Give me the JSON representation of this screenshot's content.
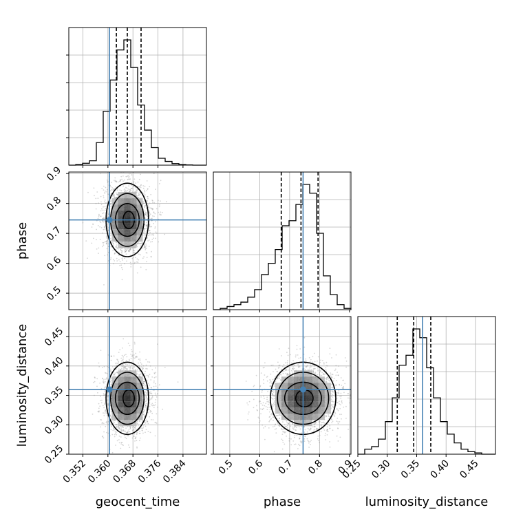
{
  "chart_data": {
    "type": "corner",
    "parameters": [
      "geocent_time",
      "phase",
      "luminosity_distance"
    ],
    "labels": {
      "geocent_time": "geocent_time",
      "phase": "phase",
      "luminosity_distance": "luminosity_distance"
    },
    "ranges": {
      "geocent_time": [
        0.3475,
        0.3915
      ],
      "phase": [
        0.445,
        0.905
      ],
      "luminosity_distance": [
        0.25,
        0.484
      ]
    },
    "ticks": {
      "geocent_time": [
        "0.352",
        "0.360",
        "0.368",
        "0.376",
        "0.384"
      ],
      "phase": [
        "0.5",
        "0.6",
        "0.7",
        "0.8",
        "0.9"
      ],
      "luminosity_distance": [
        "0.25",
        "0.30",
        "0.35",
        "0.40",
        "0.45"
      ]
    },
    "truths": {
      "geocent_time": 0.3605,
      "phase": 0.745,
      "luminosity_distance": 0.36
    },
    "quantiles": {
      "geocent_time": [
        0.3627,
        0.3662,
        0.3706
      ],
      "phase": [
        0.672,
        0.738,
        0.795
      ],
      "luminosity_distance": [
        0.317,
        0.345,
        0.374
      ]
    },
    "histograms": {
      "geocent_time": {
        "edges": [
          0.3475,
          0.3497,
          0.3519,
          0.3541,
          0.3563,
          0.3585,
          0.3607,
          0.3629,
          0.3651,
          0.3673,
          0.3695,
          0.3717,
          0.3739,
          0.3761,
          0.3783,
          0.3805,
          0.3827,
          0.3849,
          0.3871,
          0.3893,
          0.3915
        ],
        "counts": [
          0,
          0.005,
          0.015,
          0.035,
          0.18,
          0.43,
          0.68,
          0.92,
          1.0,
          0.78,
          0.48,
          0.28,
          0.14,
          0.055,
          0.03,
          0.012,
          0.005,
          0.002,
          0,
          0
        ]
      },
      "phase": {
        "edges": [
          0.445,
          0.468,
          0.491,
          0.514,
          0.537,
          0.56,
          0.583,
          0.606,
          0.629,
          0.652,
          0.675,
          0.698,
          0.721,
          0.744,
          0.767,
          0.79,
          0.813,
          0.836,
          0.859,
          0.882,
          0.905
        ],
        "counts": [
          0,
          0.01,
          0.025,
          0.04,
          0.06,
          0.1,
          0.16,
          0.28,
          0.37,
          0.48,
          0.67,
          0.71,
          0.84,
          1.0,
          0.93,
          0.61,
          0.27,
          0.12,
          0.04,
          0.01
        ]
      },
      "luminosity_distance": {
        "edges": [
          0.25,
          0.2617,
          0.2734,
          0.2851,
          0.2968,
          0.3085,
          0.3202,
          0.3319,
          0.3436,
          0.3553,
          0.367,
          0.3787,
          0.3904,
          0.4021,
          0.4138,
          0.4255,
          0.4372,
          0.4489,
          0.4606,
          0.4723,
          0.484
        ],
        "counts": [
          0,
          0.04,
          0.06,
          0.12,
          0.26,
          0.45,
          0.71,
          0.79,
          1.0,
          0.93,
          0.69,
          0.45,
          0.26,
          0.16,
          0.09,
          0.04,
          0.02,
          0.01,
          0,
          0
        ]
      }
    },
    "contours": {
      "phase_vs_geocent_time": {
        "center": [
          0.3662,
          0.745
        ],
        "sigma": [
          0.0036,
          0.058
        ],
        "levels": [
          0.5,
          1.0,
          1.5,
          2.0
        ]
      },
      "luminosity_distance_vs_geocent_time": {
        "center": [
          0.3662,
          0.345
        ],
        "sigma": [
          0.0036,
          0.029
        ],
        "levels": [
          0.5,
          1.0,
          1.5,
          2.0
        ]
      },
      "luminosity_distance_vs_phase": {
        "center": [
          0.745,
          0.345
        ],
        "sigma": [
          0.058,
          0.029
        ],
        "levels": [
          0.5,
          1.0,
          1.5,
          2.0
        ]
      }
    },
    "grid": true,
    "colors": {
      "truth": "#4682b4",
      "histogram": "#000000",
      "quantile": "#000000",
      "grid": "#b0b0b0",
      "scatter": "#888888"
    }
  }
}
